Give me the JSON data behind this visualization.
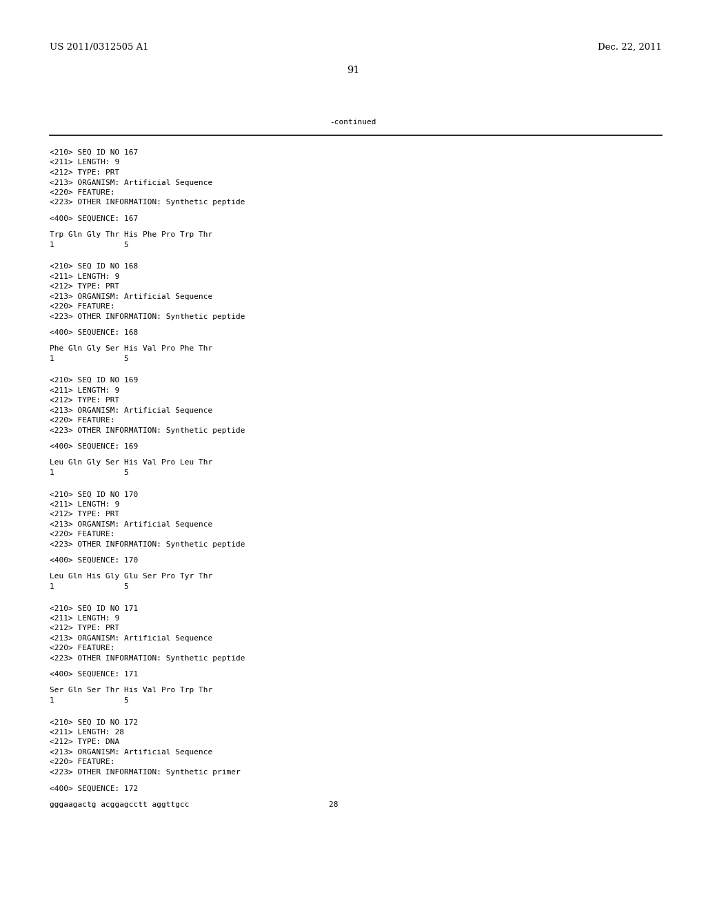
{
  "background_color": "#ffffff",
  "top_left_text": "US 2011/0312505 A1",
  "top_right_text": "Dec. 22, 2011",
  "page_number": "91",
  "continued_text": "-continued",
  "font_size_header": 9.5,
  "font_size_body": 8.0,
  "font_size_page": 10.5,
  "lines": [
    "<210> SEQ ID NO 167",
    "<211> LENGTH: 9",
    "<212> TYPE: PRT",
    "<213> ORGANISM: Artificial Sequence",
    "<220> FEATURE:",
    "<223> OTHER INFORMATION: Synthetic peptide",
    "",
    "<400> SEQUENCE: 167",
    "",
    "Trp Gln Gly Thr His Phe Pro Trp Thr",
    "1               5",
    "",
    "",
    "<210> SEQ ID NO 168",
    "<211> LENGTH: 9",
    "<212> TYPE: PRT",
    "<213> ORGANISM: Artificial Sequence",
    "<220> FEATURE:",
    "<223> OTHER INFORMATION: Synthetic peptide",
    "",
    "<400> SEQUENCE: 168",
    "",
    "Phe Gln Gly Ser His Val Pro Phe Thr",
    "1               5",
    "",
    "",
    "<210> SEQ ID NO 169",
    "<211> LENGTH: 9",
    "<212> TYPE: PRT",
    "<213> ORGANISM: Artificial Sequence",
    "<220> FEATURE:",
    "<223> OTHER INFORMATION: Synthetic peptide",
    "",
    "<400> SEQUENCE: 169",
    "",
    "Leu Gln Gly Ser His Val Pro Leu Thr",
    "1               5",
    "",
    "",
    "<210> SEQ ID NO 170",
    "<211> LENGTH: 9",
    "<212> TYPE: PRT",
    "<213> ORGANISM: Artificial Sequence",
    "<220> FEATURE:",
    "<223> OTHER INFORMATION: Synthetic peptide",
    "",
    "<400> SEQUENCE: 170",
    "",
    "Leu Gln His Gly Glu Ser Pro Tyr Thr",
    "1               5",
    "",
    "",
    "<210> SEQ ID NO 171",
    "<211> LENGTH: 9",
    "<212> TYPE: PRT",
    "<213> ORGANISM: Artificial Sequence",
    "<220> FEATURE:",
    "<223> OTHER INFORMATION: Synthetic peptide",
    "",
    "<400> SEQUENCE: 171",
    "",
    "Ser Gln Ser Thr His Val Pro Trp Thr",
    "1               5",
    "",
    "",
    "<210> SEQ ID NO 172",
    "<211> LENGTH: 28",
    "<212> TYPE: DNA",
    "<213> ORGANISM: Artificial Sequence",
    "<220> FEATURE:",
    "<223> OTHER INFORMATION: Synthetic primer",
    "",
    "<400> SEQUENCE: 172",
    "",
    "gggaagactg acggagcctt aggttgcc                              28"
  ]
}
